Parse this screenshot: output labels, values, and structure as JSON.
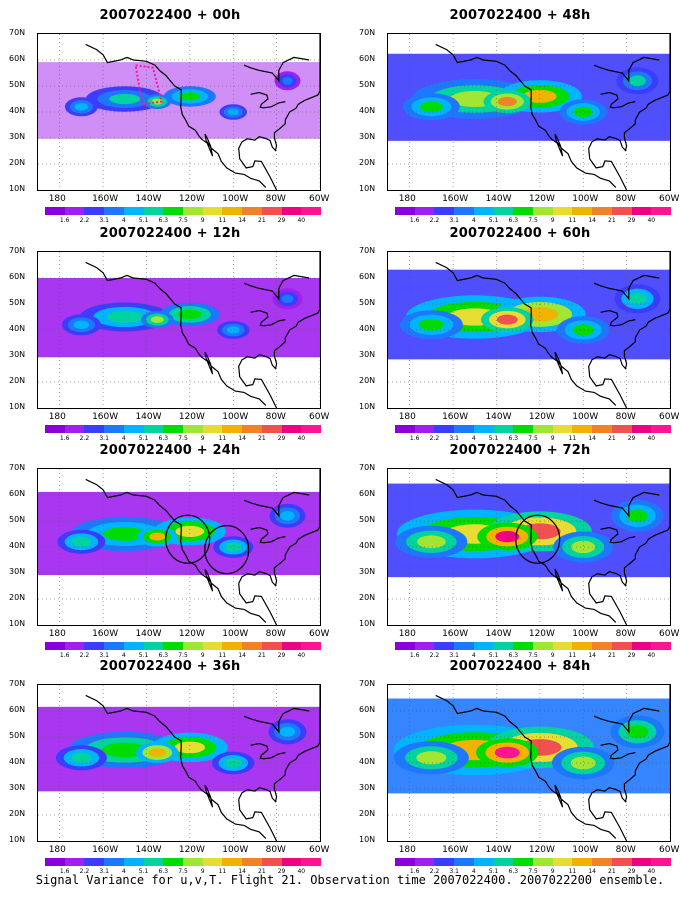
{
  "panels": [
    {
      "title": "2007022400 + 00h",
      "intensity": 0.15,
      "circles": [],
      "obs_box": true
    },
    {
      "title": "2007022400 + 48h",
      "intensity": 0.55,
      "circles": [],
      "obs_box": false
    },
    {
      "title": "2007022400 + 12h",
      "intensity": 0.25,
      "circles": [],
      "obs_box": false
    },
    {
      "title": "2007022400 + 60h",
      "intensity": 0.65,
      "circles": [],
      "obs_box": false
    },
    {
      "title": "2007022400 + 24h",
      "intensity": 0.4,
      "circles": [
        [
          -121,
          43
        ],
        [
          -103,
          39
        ]
      ],
      "obs_box": false
    },
    {
      "title": "2007022400 + 72h",
      "intensity": 0.8,
      "circles": [
        [
          -121,
          43
        ]
      ],
      "obs_box": false
    },
    {
      "title": "2007022400 + 36h",
      "intensity": 0.45,
      "circles": [],
      "obs_box": false
    },
    {
      "title": "2007022400 + 84h",
      "intensity": 0.85,
      "circles": [],
      "obs_box": false
    }
  ],
  "y_ticks": [
    "70N",
    "60N",
    "50N",
    "40N",
    "30N",
    "20N",
    "10N"
  ],
  "x_ticks": [
    "180",
    "160W",
    "140W",
    "120W",
    "100W",
    "80W",
    "60W"
  ],
  "colorbar": {
    "labels": [
      "1.6",
      "2.2",
      "3.1",
      "4",
      "5.1",
      "6.3",
      "7.5",
      "9",
      "11",
      "14",
      "21",
      "29",
      "40"
    ],
    "colors": [
      "#8a00dc",
      "#a020f0",
      "#3c3cff",
      "#1e78ff",
      "#00b4ff",
      "#00d2a0",
      "#00dc00",
      "#a0e632",
      "#e6dc32",
      "#f0b400",
      "#f08228",
      "#f05050",
      "#f00082",
      "#ff1493"
    ]
  },
  "caption": "Signal Variance for u,v,T. Flight 21. Observation time 2007022400. 2007022200 ensemble."
}
